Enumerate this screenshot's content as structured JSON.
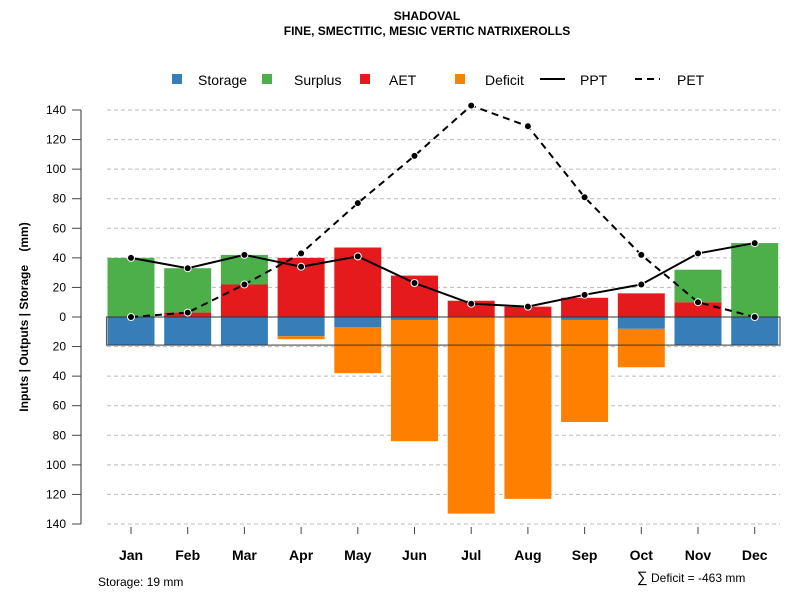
{
  "chart_data": {
    "type": "bar",
    "title": "SHADOVAL",
    "subtitle": "FINE, SMECTITIC, MESIC VERTIC NATRIXEROLLS",
    "ylabel": "Inputs | Outputs | Storage    (mm)",
    "xlabel": "",
    "ylim": [
      -140,
      140
    ],
    "yticks": [
      140,
      120,
      100,
      80,
      60,
      40,
      20,
      0,
      -20,
      -40,
      -60,
      -80,
      -100,
      -120,
      -140
    ],
    "ytick_labels": [
      "140",
      "120",
      "100",
      "80",
      "60",
      "40",
      "20",
      "0",
      "20",
      "40",
      "60",
      "80",
      "100",
      "120",
      "140"
    ],
    "grid": true,
    "legend_position": "top",
    "categories": [
      "Jan",
      "Feb",
      "Mar",
      "Apr",
      "May",
      "Jun",
      "Jul",
      "Aug",
      "Sep",
      "Oct",
      "Nov",
      "Dec"
    ],
    "legend": [
      {
        "name": "Storage",
        "kind": "box",
        "color": "#377EB8"
      },
      {
        "name": "Surplus",
        "kind": "box",
        "color": "#4DAF4A"
      },
      {
        "name": "AET",
        "kind": "box",
        "color": "#E41A1C"
      },
      {
        "name": "Deficit",
        "kind": "box",
        "color": "#FF7F00"
      },
      {
        "name": "PPT",
        "kind": "solid-line",
        "color": "#000000"
      },
      {
        "name": "PET",
        "kind": "dashed-line",
        "color": "#000000"
      }
    ],
    "series": [
      {
        "name": "AET",
        "type": "bar-up",
        "color": "#E41A1C",
        "values": [
          0,
          3,
          22,
          40,
          47,
          28,
          11,
          7,
          13,
          16,
          10,
          0
        ]
      },
      {
        "name": "Surplus",
        "type": "bar-up-stacked",
        "color": "#4DAF4A",
        "values": [
          40,
          30,
          20,
          0,
          0,
          0,
          0,
          0,
          0,
          0,
          22,
          50
        ]
      },
      {
        "name": "Storage",
        "type": "bar-down",
        "color": "#377EB8",
        "values": [
          19,
          19,
          19,
          13,
          7,
          2,
          0,
          0,
          2,
          8,
          19,
          19
        ]
      },
      {
        "name": "Deficit",
        "type": "bar-down-stacked",
        "color": "#FF7F00",
        "values": [
          0,
          0,
          0,
          2,
          31,
          82,
          133,
          123,
          69,
          26,
          0,
          0
        ]
      },
      {
        "name": "PPT",
        "type": "line",
        "color": "#000000",
        "values": [
          40,
          33,
          42,
          34,
          41,
          23,
          9,
          7,
          15,
          22,
          43,
          50
        ]
      },
      {
        "name": "PET",
        "type": "line-dashed",
        "color": "#000000",
        "values": [
          0,
          3,
          22,
          43,
          77,
          109,
          143,
          129,
          81,
          42,
          10,
          0
        ]
      }
    ],
    "storage_capacity": 19,
    "annotations": {
      "storage": "Storage: 19 mm",
      "deficit_sum": "Deficit = -463 mm",
      "sum_symbol": "∑"
    }
  }
}
